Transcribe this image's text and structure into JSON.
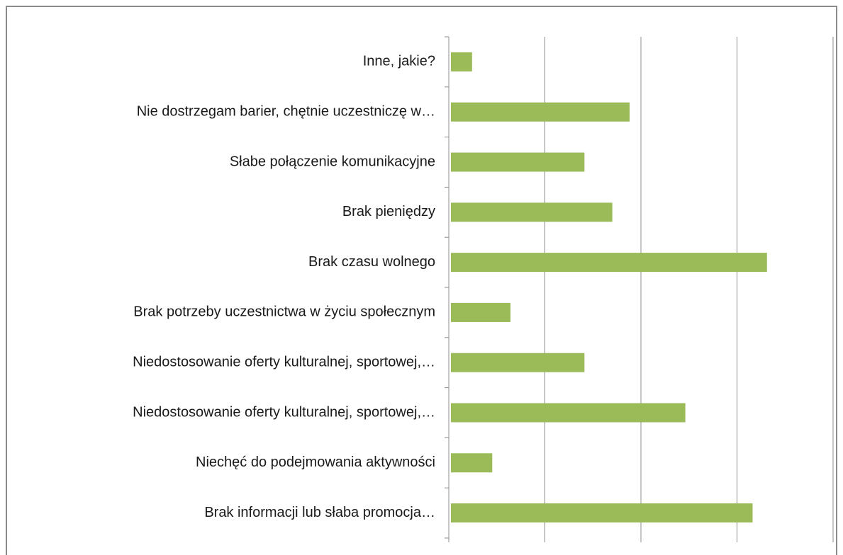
{
  "chart_data": {
    "type": "barh",
    "categories": [
      "Inne, jakie?",
      "Nie dostrzegam barier, chętnie uczestniczę w…",
      "Słabe połączenie komunikacyjne",
      "Brak pieniędzy",
      "Brak czasu wolnego",
      "Brak potrzeby uczestnictwa w życiu społecznym",
      "Niedostosowanie oferty kulturalnej, sportowej,…",
      "Niedostosowanie oferty kulturalnej, sportowej,…",
      "Niechęć do podejmowania aktywności",
      "Brak informacji lub słaba promocja…"
    ],
    "values": [
      2.2,
      18.6,
      13.9,
      16.8,
      32.9,
      6.2,
      13.9,
      24.4,
      4.3,
      31.4
    ],
    "color": "#9bbb59",
    "xlim": [
      0,
      40
    ],
    "xticks": [
      0,
      10,
      20,
      30,
      40
    ],
    "grid": true
  }
}
